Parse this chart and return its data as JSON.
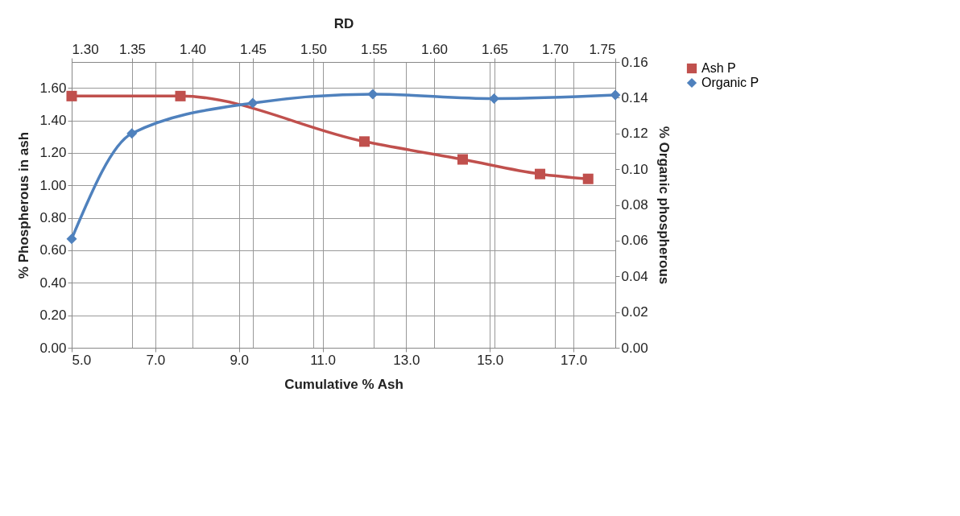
{
  "chart_data": {
    "type": "line",
    "x2label": "RD",
    "xlabel": "Cumulative % Ash",
    "ylabel": "% Phospherous in ash",
    "y2label": "% Organic phospherous",
    "xlim": [
      5,
      18
    ],
    "xticks": [
      {
        "value": 5,
        "label": "5.0"
      },
      {
        "value": 7,
        "label": "7.0"
      },
      {
        "value": 9,
        "label": "9.0"
      },
      {
        "value": 11,
        "label": "11.0"
      },
      {
        "value": 13,
        "label": "13.0"
      },
      {
        "value": 15,
        "label": "15.0"
      },
      {
        "value": 17,
        "label": "17.0"
      }
    ],
    "x2lim": [
      1.3,
      1.75
    ],
    "x2ticks": [
      {
        "value": 1.3,
        "label": "1.30"
      },
      {
        "value": 1.35,
        "label": "1.35"
      },
      {
        "value": 1.4,
        "label": "1.40"
      },
      {
        "value": 1.45,
        "label": "1.45"
      },
      {
        "value": 1.5,
        "label": "1.50"
      },
      {
        "value": 1.55,
        "label": "1.55"
      },
      {
        "value": 1.6,
        "label": "1.60"
      },
      {
        "value": 1.65,
        "label": "1.65"
      },
      {
        "value": 1.7,
        "label": "1.70"
      },
      {
        "value": 1.75,
        "label": "1.75"
      }
    ],
    "ylim": [
      0,
      1.76
    ],
    "yticks": [
      {
        "value": 0,
        "label": "0.00"
      },
      {
        "value": 0.2,
        "label": "0.20"
      },
      {
        "value": 0.4,
        "label": "0.40"
      },
      {
        "value": 0.6,
        "label": "0.60"
      },
      {
        "value": 0.8,
        "label": "0.80"
      },
      {
        "value": 1,
        "label": "1.00"
      },
      {
        "value": 1.2,
        "label": "1.20"
      },
      {
        "value": 1.4,
        "label": "1.40"
      },
      {
        "value": 1.6,
        "label": "1.60"
      }
    ],
    "y2lim": [
      0,
      0.16
    ],
    "y2ticks": [
      {
        "value": 0,
        "label": "0.00"
      },
      {
        "value": 0.02,
        "label": "0.02"
      },
      {
        "value": 0.04,
        "label": "0.04"
      },
      {
        "value": 0.06,
        "label": "0.06"
      },
      {
        "value": 0.08,
        "label": "0.08"
      },
      {
        "value": 0.1,
        "label": "0.10"
      },
      {
        "value": 0.12,
        "label": "0.12"
      },
      {
        "value": 0.14,
        "label": "0.14"
      },
      {
        "value": 0.16,
        "label": "0.16"
      }
    ],
    "grid": true,
    "legend": "right",
    "series": [
      {
        "name": "Ash P",
        "color": "#c0504d",
        "marker": "square",
        "x": [
          5.0,
          7.6,
          12.0,
          14.35,
          16.2,
          17.35
        ],
        "values": [
          1.55,
          1.55,
          1.27,
          1.16,
          1.07,
          1.04
        ]
      },
      {
        "name": "Organic P",
        "color": "#4f81bd",
        "marker": "diamond",
        "axis": "y2",
        "x": [
          5.0,
          6.44,
          9.33,
          12.2,
          15.1,
          18.0
        ],
        "values": [
          0.061,
          0.12,
          0.137,
          0.142,
          0.1395,
          0.1415
        ]
      }
    ]
  }
}
